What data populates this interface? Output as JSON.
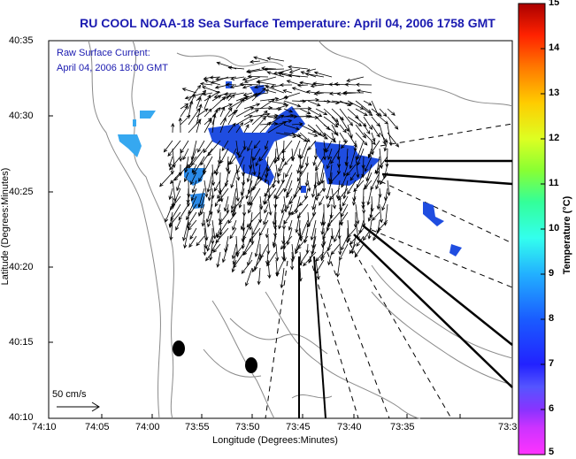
{
  "title": "RU COOL  NOAA-18  Sea Surface Temperature:  April 04, 2006 1758 GMT",
  "overlay_legend": {
    "line1": "Raw Surface Current:",
    "line2": "April 04, 2006 18:00 GMT"
  },
  "axes": {
    "xlabel": "Longitude (Degrees:Minutes)",
    "ylabel": "Latitude (Degrees:Minutes)",
    "x_ticks": [
      "74:10",
      "74:05",
      "74:00",
      "73:55",
      "73:50",
      "73:45",
      "73:40",
      "73:35",
      "73:3"
    ],
    "y_ticks": [
      "40:35",
      "40:30",
      "40:25",
      "40:20",
      "40:15",
      "40:10"
    ]
  },
  "colorbar": {
    "label": "Temperature (°C)",
    "ticks": [
      "15",
      "14",
      "13",
      "12",
      "11",
      "10",
      "9",
      "8",
      "7",
      "6",
      "5"
    ],
    "range": [
      5,
      15
    ]
  },
  "scale_arrow_label": "50 cm/s",
  "colors": {
    "title": "#1a1ab0",
    "sst_dark_blue": "#1f4de0",
    "sst_light_blue": "#2a8ae8",
    "sst_cyan": "#36a8f0"
  }
}
